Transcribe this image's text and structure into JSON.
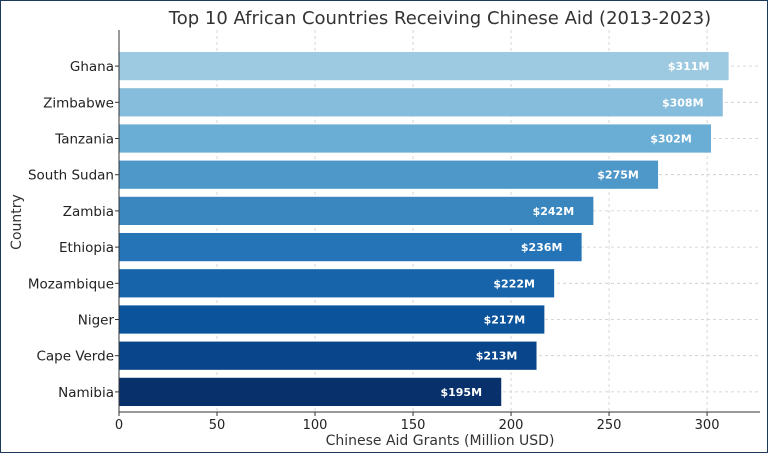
{
  "chart_data": {
    "type": "bar",
    "orientation": "horizontal",
    "title": "Top 10 African Countries Receiving Chinese Aid (2013-2023)",
    "xlabel": "Chinese Aid Grants (Million USD)",
    "ylabel": "Country",
    "categories": [
      "Ghana",
      "Zimbabwe",
      "Tanzania",
      "South Sudan",
      "Zambia",
      "Ethiopia",
      "Mozambique",
      "Niger",
      "Cape Verde",
      "Namibia"
    ],
    "values": [
      311,
      308,
      302,
      275,
      242,
      236,
      222,
      217,
      213,
      195
    ],
    "value_labels": [
      "$311M",
      "$308M",
      "$302M",
      "$275M",
      "$242M",
      "$236M",
      "$222M",
      "$217M",
      "$213M",
      "$195M"
    ],
    "colors": [
      "#9ecae1",
      "#86bcdc",
      "#6aadd5",
      "#4e97c9",
      "#3a87c0",
      "#2474b7",
      "#1764ab",
      "#0b539a",
      "#08458a",
      "#08306b"
    ],
    "xticks": [
      "0",
      "50",
      "100",
      "150",
      "200",
      "250",
      "300"
    ],
    "xlim": [
      0,
      327
    ],
    "grid": true,
    "grid_style": "dashed"
  }
}
